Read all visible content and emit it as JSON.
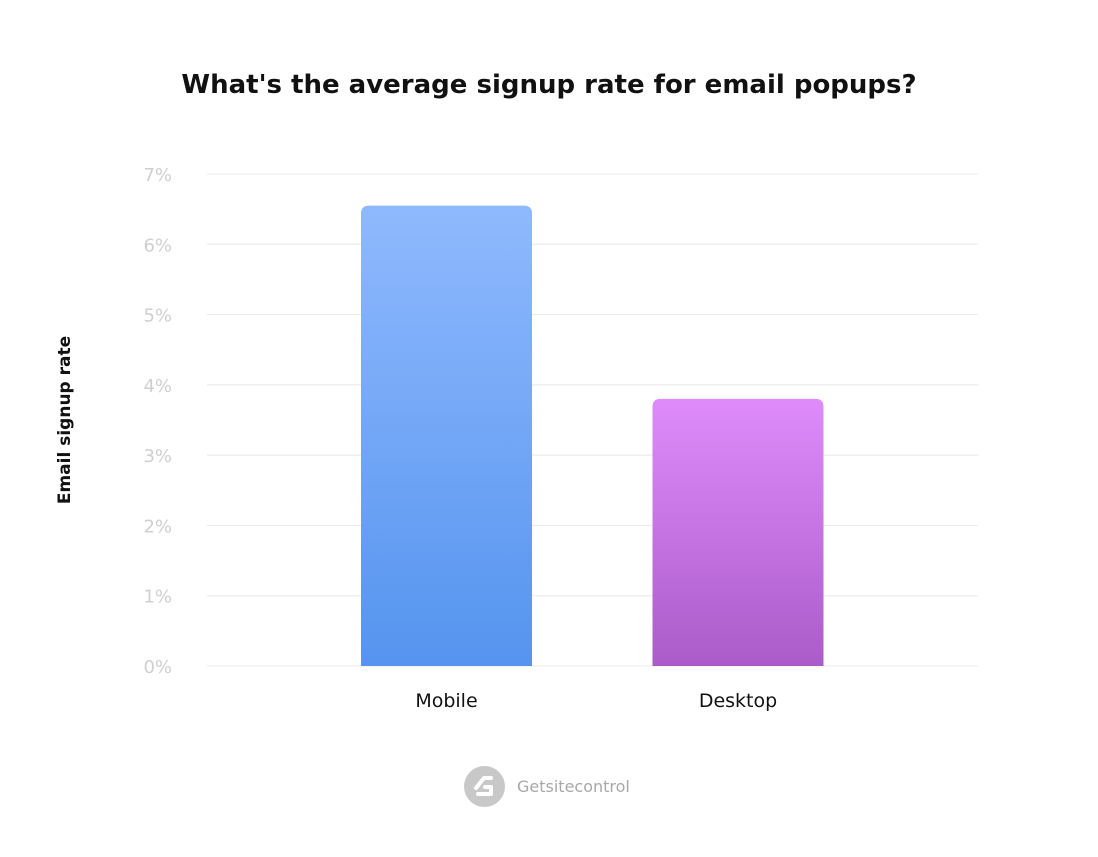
{
  "chart_data": {
    "type": "bar",
    "title": "What's the average signup rate for email popups?",
    "xlabel": "",
    "ylabel": "Email signup rate",
    "categories": [
      "Mobile",
      "Desktop"
    ],
    "values": [
      6.55,
      3.8
    ],
    "ylim": [
      0,
      7
    ],
    "yticks": [
      "0%",
      "1%",
      "2%",
      "3%",
      "4%",
      "5%",
      "6%",
      "7%"
    ],
    "grid": true,
    "colors": [
      [
        "#8fb9fd",
        "#5594ef"
      ],
      [
        "#df8bfb",
        "#aa5cc9"
      ]
    ]
  },
  "branding": {
    "name": "Getsitecontrol"
  }
}
